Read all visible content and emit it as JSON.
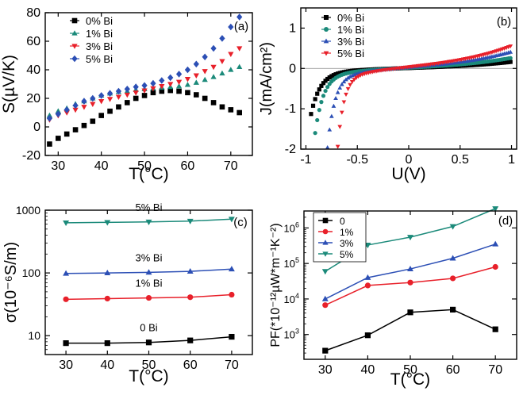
{
  "chart_data": [
    {
      "id": "a",
      "panel_label": "(a)",
      "type": "scatter",
      "xlabel": "T(°C)",
      "ylabel": "S(µV/K)",
      "xlim": [
        27,
        75
      ],
      "ylim": [
        -20,
        80
      ],
      "xticks": [
        30,
        40,
        50,
        60,
        70
      ],
      "yticks": [
        -20,
        0,
        20,
        40,
        60,
        80
      ],
      "legend": [
        "0% Bi",
        "1% Bi",
        "3% Bi",
        "5% Bi"
      ],
      "series": [
        {
          "name": "0% Bi",
          "color": "#000000",
          "marker": "square",
          "x": [
            28,
            30,
            32,
            34,
            36,
            38,
            40,
            42,
            44,
            46,
            48,
            50,
            52,
            54,
            56,
            58,
            60,
            62,
            64,
            66,
            68,
            70,
            72
          ],
          "y": [
            -12,
            -8,
            -5,
            -2,
            1,
            4,
            8,
            11,
            14,
            17,
            20,
            22,
            24,
            25,
            25.5,
            25,
            24,
            22.5,
            20,
            17,
            14,
            12,
            10
          ]
        },
        {
          "name": "1% Bi",
          "color": "#1b8a7a",
          "marker": "triangle-up",
          "x": [
            28,
            30,
            32,
            34,
            36,
            38,
            40,
            42,
            44,
            46,
            48,
            50,
            52,
            54,
            56,
            58,
            60,
            62,
            64,
            66,
            68,
            70,
            72
          ],
          "y": [
            8,
            11,
            13,
            16,
            18,
            20,
            22,
            23.5,
            24.5,
            25,
            26,
            26.5,
            27,
            27.5,
            28,
            28.5,
            29.5,
            31,
            33,
            35,
            37.5,
            40,
            42
          ]
        },
        {
          "name": "3% Bi",
          "color": "#e8202a",
          "marker": "triangle-down",
          "x": [
            28,
            30,
            32,
            34,
            36,
            38,
            40,
            42,
            44,
            46,
            48,
            50,
            52,
            54,
            56,
            58,
            60,
            62,
            64,
            66,
            68,
            70,
            72
          ],
          "y": [
            5,
            8,
            10,
            12,
            14,
            16,
            18,
            19.5,
            21,
            22.5,
            24,
            25.5,
            27,
            28.5,
            30,
            31.5,
            33.5,
            36,
            39,
            42,
            46,
            51,
            55
          ]
        },
        {
          "name": "5% Bi",
          "color": "#2c4fb5",
          "marker": "diamond",
          "x": [
            28,
            30,
            32,
            34,
            36,
            38,
            40,
            42,
            44,
            46,
            48,
            50,
            52,
            54,
            56,
            58,
            60,
            62,
            64,
            66,
            68,
            70,
            72
          ],
          "y": [
            6,
            9,
            12,
            15,
            18,
            20,
            22,
            23.5,
            25,
            26.5,
            28,
            29,
            30.5,
            32.5,
            34.5,
            37,
            40,
            44,
            49,
            55,
            62,
            70,
            77
          ]
        }
      ]
    },
    {
      "id": "b",
      "panel_label": "(b)",
      "type": "scatter",
      "xlabel": "U(V)",
      "ylabel": "J(mA/cm²)",
      "xlim": [
        -1.05,
        1.05
      ],
      "ylim": [
        -2,
        1.5
      ],
      "xticks": [
        -1.0,
        -0.5,
        0.0,
        0.5,
        1.0
      ],
      "xtick_labels": [
        "-1",
        "-0.5",
        "0",
        "0.5",
        "1"
      ],
      "yticks": [
        -2,
        -1,
        0,
        1
      ],
      "legend": [
        "0% Bi",
        "1% Bi",
        "3% Bi",
        "5% Bi"
      ],
      "series": [
        {
          "name": "0% Bi",
          "color": "#000000",
          "marker": "square",
          "Jsc": 1.0,
          "Voc": 0.95,
          "n": 0.09,
          "g": 0.22
        },
        {
          "name": "1% Bi",
          "color": "#1b8a7a",
          "marker": "circle",
          "Jsc": 1.6,
          "Voc": 0.92,
          "n": 0.08,
          "g": 0.35
        },
        {
          "name": "3% Bi",
          "color": "#2c4fb5",
          "marker": "triangle-up",
          "Jsc": 2.0,
          "Voc": 0.8,
          "n": 0.07,
          "g": 0.55
        },
        {
          "name": "5% Bi",
          "color": "#e8202a",
          "marker": "triangle-down",
          "Jsc": 2.0,
          "Voc": 0.7,
          "n": 0.06,
          "g": 0.75
        }
      ]
    },
    {
      "id": "c",
      "panel_label": "(c)",
      "type": "line",
      "yscale": "log",
      "xlabel": "T(°C)",
      "ylabel": "σ(10⁻⁶S/m)",
      "xlim": [
        25,
        75
      ],
      "ylim": [
        5,
        1000
      ],
      "xticks": [
        30,
        40,
        50,
        60,
        70
      ],
      "yticks": [
        10,
        100,
        1000
      ],
      "series": [
        {
          "name": "5% Bi",
          "color": "#1b8a7a",
          "marker": "triangle-down",
          "x": [
            30,
            40,
            50,
            60,
            70
          ],
          "y": [
            630,
            640,
            650,
            670,
            720
          ]
        },
        {
          "name": "3% Bi",
          "color": "#2c4fb5",
          "marker": "triangle-up",
          "x": [
            30,
            40,
            50,
            60,
            70
          ],
          "y": [
            98,
            100,
            102,
            106,
            115
          ]
        },
        {
          "name": "1% Bi",
          "color": "#e8202a",
          "marker": "circle",
          "x": [
            30,
            40,
            50,
            60,
            70
          ],
          "y": [
            38,
            39,
            40,
            41,
            45
          ]
        },
        {
          "name": "0 Bi",
          "color": "#000000",
          "marker": "square",
          "x": [
            30,
            40,
            50,
            60,
            70
          ],
          "y": [
            7.6,
            7.6,
            7.8,
            8.4,
            9.6
          ]
        }
      ]
    },
    {
      "id": "d",
      "panel_label": "(d)",
      "type": "line",
      "yscale": "log",
      "xlabel": "T(°C)",
      "ylabel": "PF(*10⁻¹²µW*m⁻¹K⁻²)",
      "xlim": [
        25,
        75
      ],
      "ylim": [
        200,
        3000000
      ],
      "xticks": [
        30,
        40,
        50,
        60,
        70
      ],
      "yticks": [
        1000,
        10000,
        100000,
        1000000
      ],
      "legend": [
        "0",
        "1%",
        "3%",
        "5%"
      ],
      "series": [
        {
          "name": "0",
          "color": "#000000",
          "marker": "square",
          "x": [
            30,
            40,
            50,
            60,
            70
          ],
          "y": [
            350,
            950,
            4200,
            5000,
            1400
          ]
        },
        {
          "name": "1%",
          "color": "#e8202a",
          "marker": "circle",
          "x": [
            30,
            40,
            50,
            60,
            70
          ],
          "y": [
            6700,
            24000,
            29000,
            38000,
            80000
          ]
        },
        {
          "name": "3%",
          "color": "#2c4fb5",
          "marker": "triangle-up",
          "x": [
            30,
            40,
            50,
            60,
            70
          ],
          "y": [
            10000,
            40000,
            70000,
            140000,
            350000
          ]
        },
        {
          "name": "5%",
          "color": "#1b8a7a",
          "marker": "triangle-down",
          "x": [
            30,
            40,
            50,
            60,
            70
          ],
          "y": [
            60000,
            330000,
            550000,
            1100000,
            3500000
          ]
        }
      ]
    }
  ]
}
